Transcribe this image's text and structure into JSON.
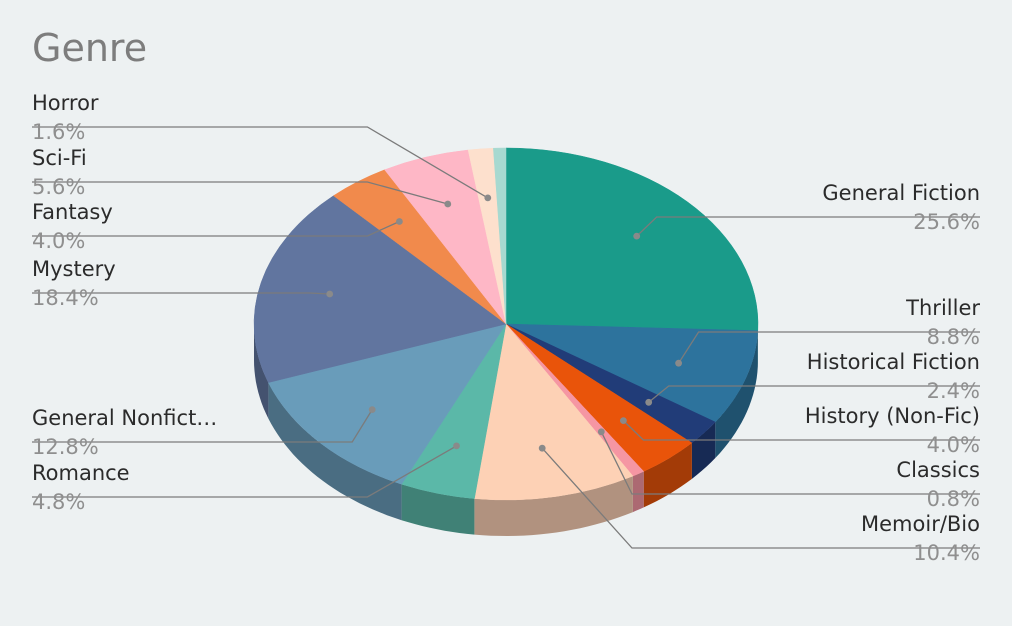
{
  "chart_data": {
    "type": "pie",
    "title": "Genre",
    "slices": [
      {
        "label": "General Fiction",
        "value": 25.6,
        "pct_label": "25.6%",
        "color": "#1a9b8a",
        "side": "right"
      },
      {
        "label": "Thriller",
        "value": 8.8,
        "pct_label": "8.8%",
        "color": "#2d739d",
        "side": "right"
      },
      {
        "label": "Historical Fiction",
        "value": 2.4,
        "pct_label": "2.4%",
        "color": "#213c78",
        "side": "right"
      },
      {
        "label": "History (Non-Fic)",
        "value": 4.0,
        "pct_label": "4.0%",
        "color": "#e9540a",
        "side": "right"
      },
      {
        "label": "Classics",
        "value": 0.8,
        "pct_label": "0.8%",
        "color": "#f596a3",
        "side": "right"
      },
      {
        "label": "Memoir/Bio",
        "value": 10.4,
        "pct_label": "10.4%",
        "color": "#fdd1b5",
        "side": "right"
      },
      {
        "label": "Romance",
        "value": 4.8,
        "pct_label": "4.8%",
        "color": "#5bb8a8",
        "side": "left"
      },
      {
        "label": "General Nonfict…",
        "value": 12.8,
        "pct_label": "12.8%",
        "color": "#699cba",
        "side": "left"
      },
      {
        "label": "Mystery",
        "value": 18.4,
        "pct_label": "18.4%",
        "color": "#61759f",
        "side": "left"
      },
      {
        "label": "Fantasy",
        "value": 4.0,
        "pct_label": "4.0%",
        "color": "#f18a4c",
        "side": "left"
      },
      {
        "label": "Sci-Fi",
        "value": 5.6,
        "pct_label": "5.6%",
        "color": "#feb7c6",
        "side": "left"
      },
      {
        "label": "Horror",
        "value": 1.6,
        "pct_label": "1.6%",
        "color": "#fde0cd",
        "side": "left"
      },
      {
        "label": "",
        "value": 0.8,
        "pct_label": "",
        "color": "#a7d9d0",
        "side": "none"
      }
    ]
  }
}
